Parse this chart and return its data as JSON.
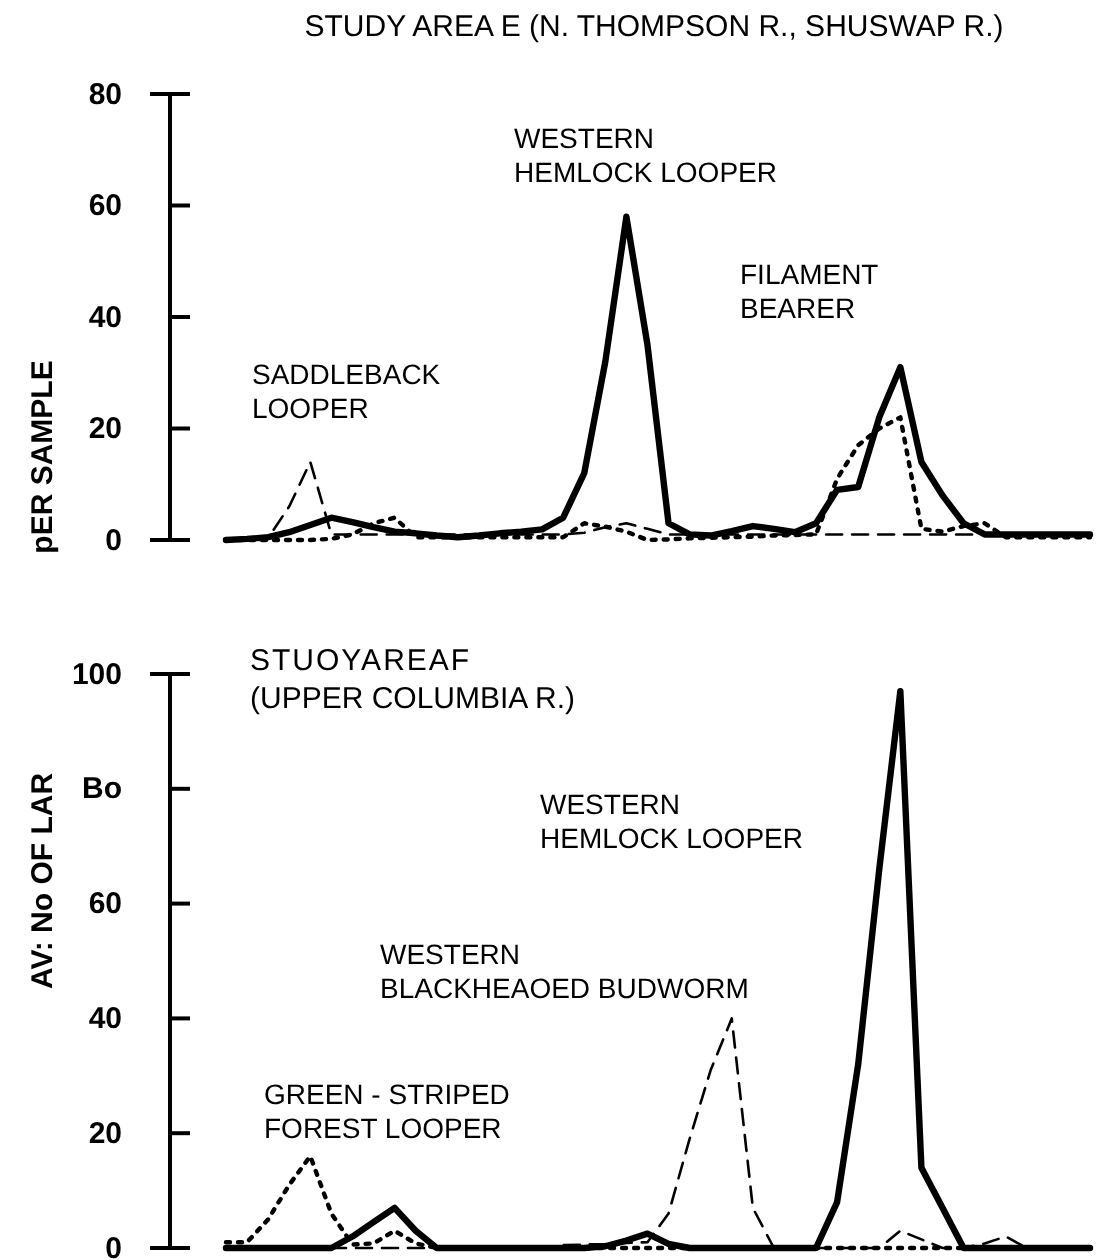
{
  "chart_data": [
    {
      "type": "line",
      "title": "STUDY AREA E (N. THOMPSON R., SHUSWAP R.)",
      "ylabel": "pER SAMPLE",
      "categories": [
        null,
        null,
        null,
        null,
        null,
        null,
        null,
        null,
        null,
        null,
        null,
        null,
        null,
        null,
        null,
        null,
        null,
        null,
        null,
        null,
        null,
        null,
        null,
        null,
        null,
        null,
        null,
        null,
        null,
        null,
        null,
        null,
        null,
        null,
        null,
        null,
        null,
        null,
        null,
        null,
        null,
        null
      ],
      "ylim": [
        0,
        80
      ],
      "yticks": [
        0,
        20,
        40,
        60,
        80
      ],
      "tick_labels": "y",
      "grid": false,
      "marker": "none",
      "series": [
        {
          "color": "#000000",
          "line_style": "solid",
          "values": [
            0,
            0.2,
            0.5,
            1.4,
            2.7,
            4,
            3.2,
            2.3,
            1.5,
            1.2,
            0.8,
            0.5,
            0.8,
            1.2,
            1.5,
            1.9,
            4,
            12,
            32,
            58,
            35,
            3,
            1,
            0.8,
            1.6,
            2.5,
            2,
            1.4,
            3,
            9,
            9.5,
            22,
            31,
            14,
            8,
            3,
            1,
            1,
            1,
            1,
            1,
            1
          ]
        },
        {
          "color": "#000000",
          "line_style": "dashed",
          "values": [
            0,
            0.2,
            0.4,
            6,
            14,
            1,
            1,
            1,
            1,
            1,
            1,
            1,
            1,
            1,
            1,
            1,
            1,
            1.3,
            2.3,
            3,
            2,
            1,
            1,
            1,
            1,
            1,
            1,
            1,
            1,
            1,
            1,
            1,
            1,
            1,
            1,
            1,
            1,
            1,
            1,
            1,
            1,
            1
          ]
        },
        {
          "color": "#000000",
          "line_style": "dotted",
          "values": [
            0,
            0,
            0,
            0,
            0,
            0.2,
            1,
            3,
            4,
            0.5,
            0.5,
            0.5,
            0.5,
            0.5,
            0.5,
            0.5,
            0.5,
            3,
            2.4,
            1.5,
            0,
            0.1,
            0.3,
            0.4,
            0.5,
            0.6,
            0.8,
            0.9,
            1,
            11,
            17,
            20,
            22,
            2,
            1.5,
            2.5,
            3,
            0.5,
            0.5,
            0.5,
            0.5,
            0.5
          ]
        }
      ],
      "annotations": [
        "WESTERN\nHEMLOCK LOOPER",
        "FILAMENT\nBEARER",
        "SADDLEBACK\nLOOPER"
      ]
    },
    {
      "type": "line",
      "title": "STUOYAREAF",
      "subtitle": "(UPPER COLUMBIA R.)",
      "ylabel": "AV: No OF LAR",
      "categories": [
        null,
        null,
        null,
        null,
        null,
        null,
        null,
        null,
        null,
        null,
        null,
        null,
        null,
        null,
        null,
        null,
        null,
        null,
        null,
        null,
        null,
        null,
        null,
        null,
        null,
        null,
        null,
        null,
        null,
        null,
        null,
        null,
        null,
        null,
        null,
        null,
        null,
        null,
        null,
        null,
        null,
        null
      ],
      "ylim": [
        0,
        100
      ],
      "yticks": [
        0,
        20,
        40,
        60,
        {
          "value": 80,
          "label": "Bo"
        },
        100
      ],
      "tick_labels": "y",
      "grid": false,
      "marker": "none",
      "series": [
        {
          "color": "#000000",
          "line_style": "solid",
          "values": [
            0,
            0,
            0,
            0,
            0,
            0,
            2,
            4.5,
            7,
            3,
            0,
            0,
            0,
            0,
            0,
            0,
            0,
            0,
            0.3,
            1.3,
            2.5,
            0.7,
            0,
            0,
            0,
            0,
            0,
            0,
            0,
            8,
            32,
            66,
            97,
            14,
            7,
            0,
            0,
            0,
            0,
            0,
            0,
            0
          ]
        },
        {
          "color": "#000000",
          "line_style": "dotted",
          "values": [
            1,
            1,
            5,
            11,
            16,
            6,
            0.6,
            0.8,
            3,
            0.8,
            0,
            0,
            0,
            0,
            0,
            0,
            0,
            0,
            0,
            0,
            0,
            0,
            0,
            0,
            0,
            0,
            0,
            0,
            0,
            0,
            0,
            0,
            0,
            0,
            0,
            0,
            0,
            0,
            0,
            0,
            0,
            0
          ]
        },
        {
          "color": "#000000",
          "line_style": "dashed",
          "values": [
            0,
            0,
            0,
            0,
            0,
            0,
            0,
            0,
            0,
            0,
            0,
            0,
            0,
            0,
            0,
            0,
            0.5,
            0.6,
            0.7,
            0.9,
            1,
            6,
            19,
            31,
            40,
            7,
            0,
            0,
            0,
            0,
            0,
            0,
            3,
            1.5,
            0,
            0,
            0.8,
            2,
            0,
            0,
            0,
            0
          ]
        }
      ],
      "annotations": [
        "WESTERN\nHEMLOCK LOOPER",
        "WESTERN\nBLACKHEAOED BUDWORM",
        "GREEN - STRIPED\nFOREST LOOPER"
      ]
    }
  ]
}
